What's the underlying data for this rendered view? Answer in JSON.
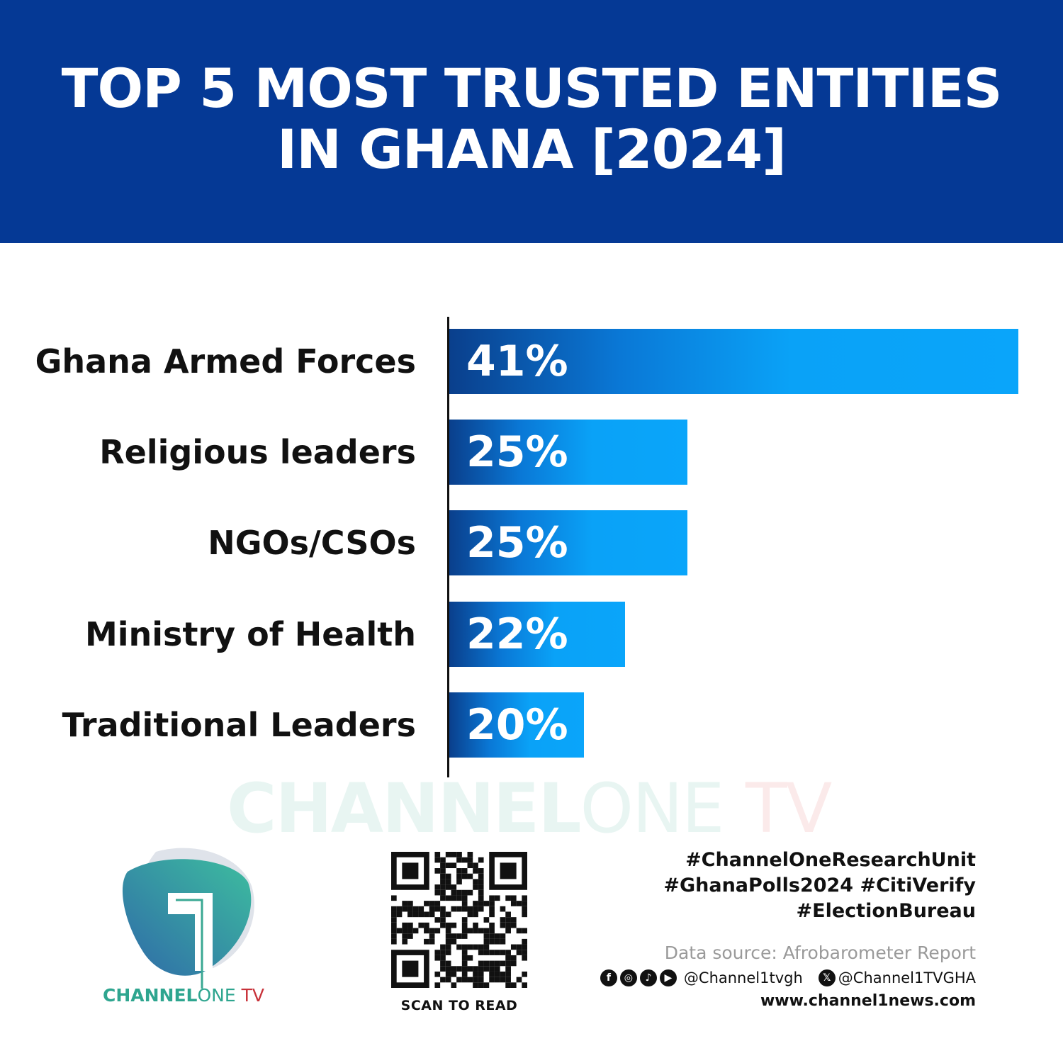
{
  "header": {
    "title_line1": "TOP 5 MOST TRUSTED ENTITIES",
    "title_line2": "IN GHANA [2024]",
    "background": "#053995"
  },
  "chart_data": {
    "type": "bar",
    "orientation": "horizontal",
    "title": "TOP 5 MOST TRUSTED ENTITIES IN GHANA [2024]",
    "categories": [
      "Ghana Armed Forces",
      "Religious leaders",
      "NGOs/CSOs",
      "Ministry of Health",
      "Traditional Leaders"
    ],
    "values": [
      41,
      25,
      25,
      22,
      20
    ],
    "data_labels": [
      "41%",
      "25%",
      "25%",
      "22%",
      "20%"
    ],
    "xlim": [
      13.5,
      41
    ],
    "grid": false,
    "bar_color_gradient": [
      "#0a3f8c",
      "#0aa5fa"
    ]
  },
  "watermark": {
    "part1": "CHANNEL",
    "part2": "ONE",
    "part3": "TV"
  },
  "logo": {
    "brand1": "CHANNEL",
    "brand2": "ONE",
    "brand3": " TV"
  },
  "qr": {
    "caption": "SCAN TO READ"
  },
  "footer": {
    "tags": [
      "#ChannelOneResearchUnit",
      "#GhanaPolls2024 #CitiVerify",
      "#ElectionBureau"
    ],
    "source": "Data source: Afrobarometer Report",
    "social_icons": [
      "facebook-icon",
      "instagram-icon",
      "tiktok-icon",
      "youtube-icon"
    ],
    "handle1": "@Channel1tvgh",
    "handle2": "@Channel1TVGHA",
    "website": "www.channel1news.com"
  }
}
